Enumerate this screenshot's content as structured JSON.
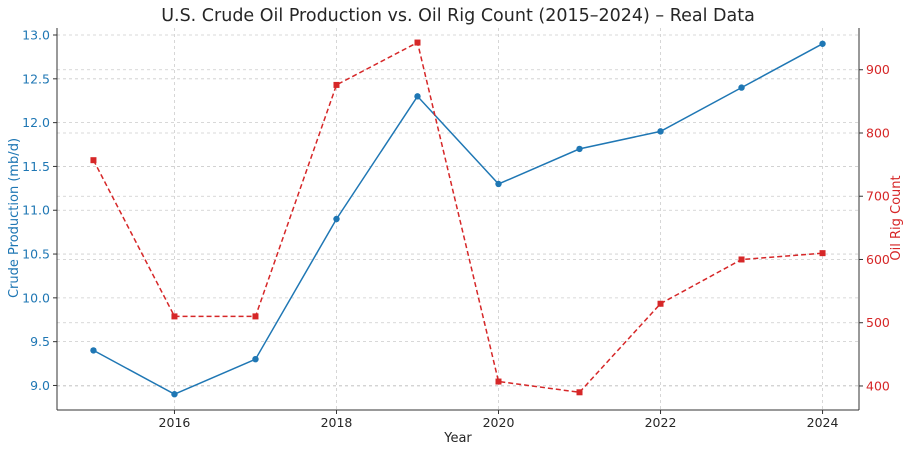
{
  "chart_data": {
    "type": "line",
    "title": "U.S. Crude Oil Production vs. Oil Rig Count (2015–2024) – Real Data",
    "xlabel": "Year",
    "x": [
      2015,
      2016,
      2017,
      2018,
      2019,
      2020,
      2021,
      2022,
      2023,
      2024
    ],
    "x_ticks": [
      "2016",
      "2018",
      "2020",
      "2022",
      "2024"
    ],
    "grid": true,
    "series": [
      {
        "axis": "left",
        "ylabel": "Crude Production (mb/d)",
        "color": "#1f77b4",
        "line_style": "solid",
        "marker": "circle",
        "values": [
          9.4,
          8.9,
          9.3,
          10.9,
          12.3,
          11.3,
          11.7,
          11.9,
          12.4,
          12.9
        ],
        "ylim": [
          8.72,
          13.08
        ],
        "y_ticks": [
          "9.0",
          "9.5",
          "10.0",
          "10.5",
          "11.0",
          "11.5",
          "12.0",
          "12.5",
          "13.0"
        ]
      },
      {
        "axis": "right",
        "ylabel": "Oil Rig Count",
        "color": "#d62728",
        "line_style": "dashed",
        "marker": "square",
        "values": [
          757,
          510,
          510,
          876,
          943,
          407,
          390,
          530,
          600,
          610
        ],
        "ylim": [
          362,
          966
        ],
        "y_ticks": [
          "400",
          "500",
          "600",
          "700",
          "800",
          "900"
        ]
      }
    ]
  }
}
